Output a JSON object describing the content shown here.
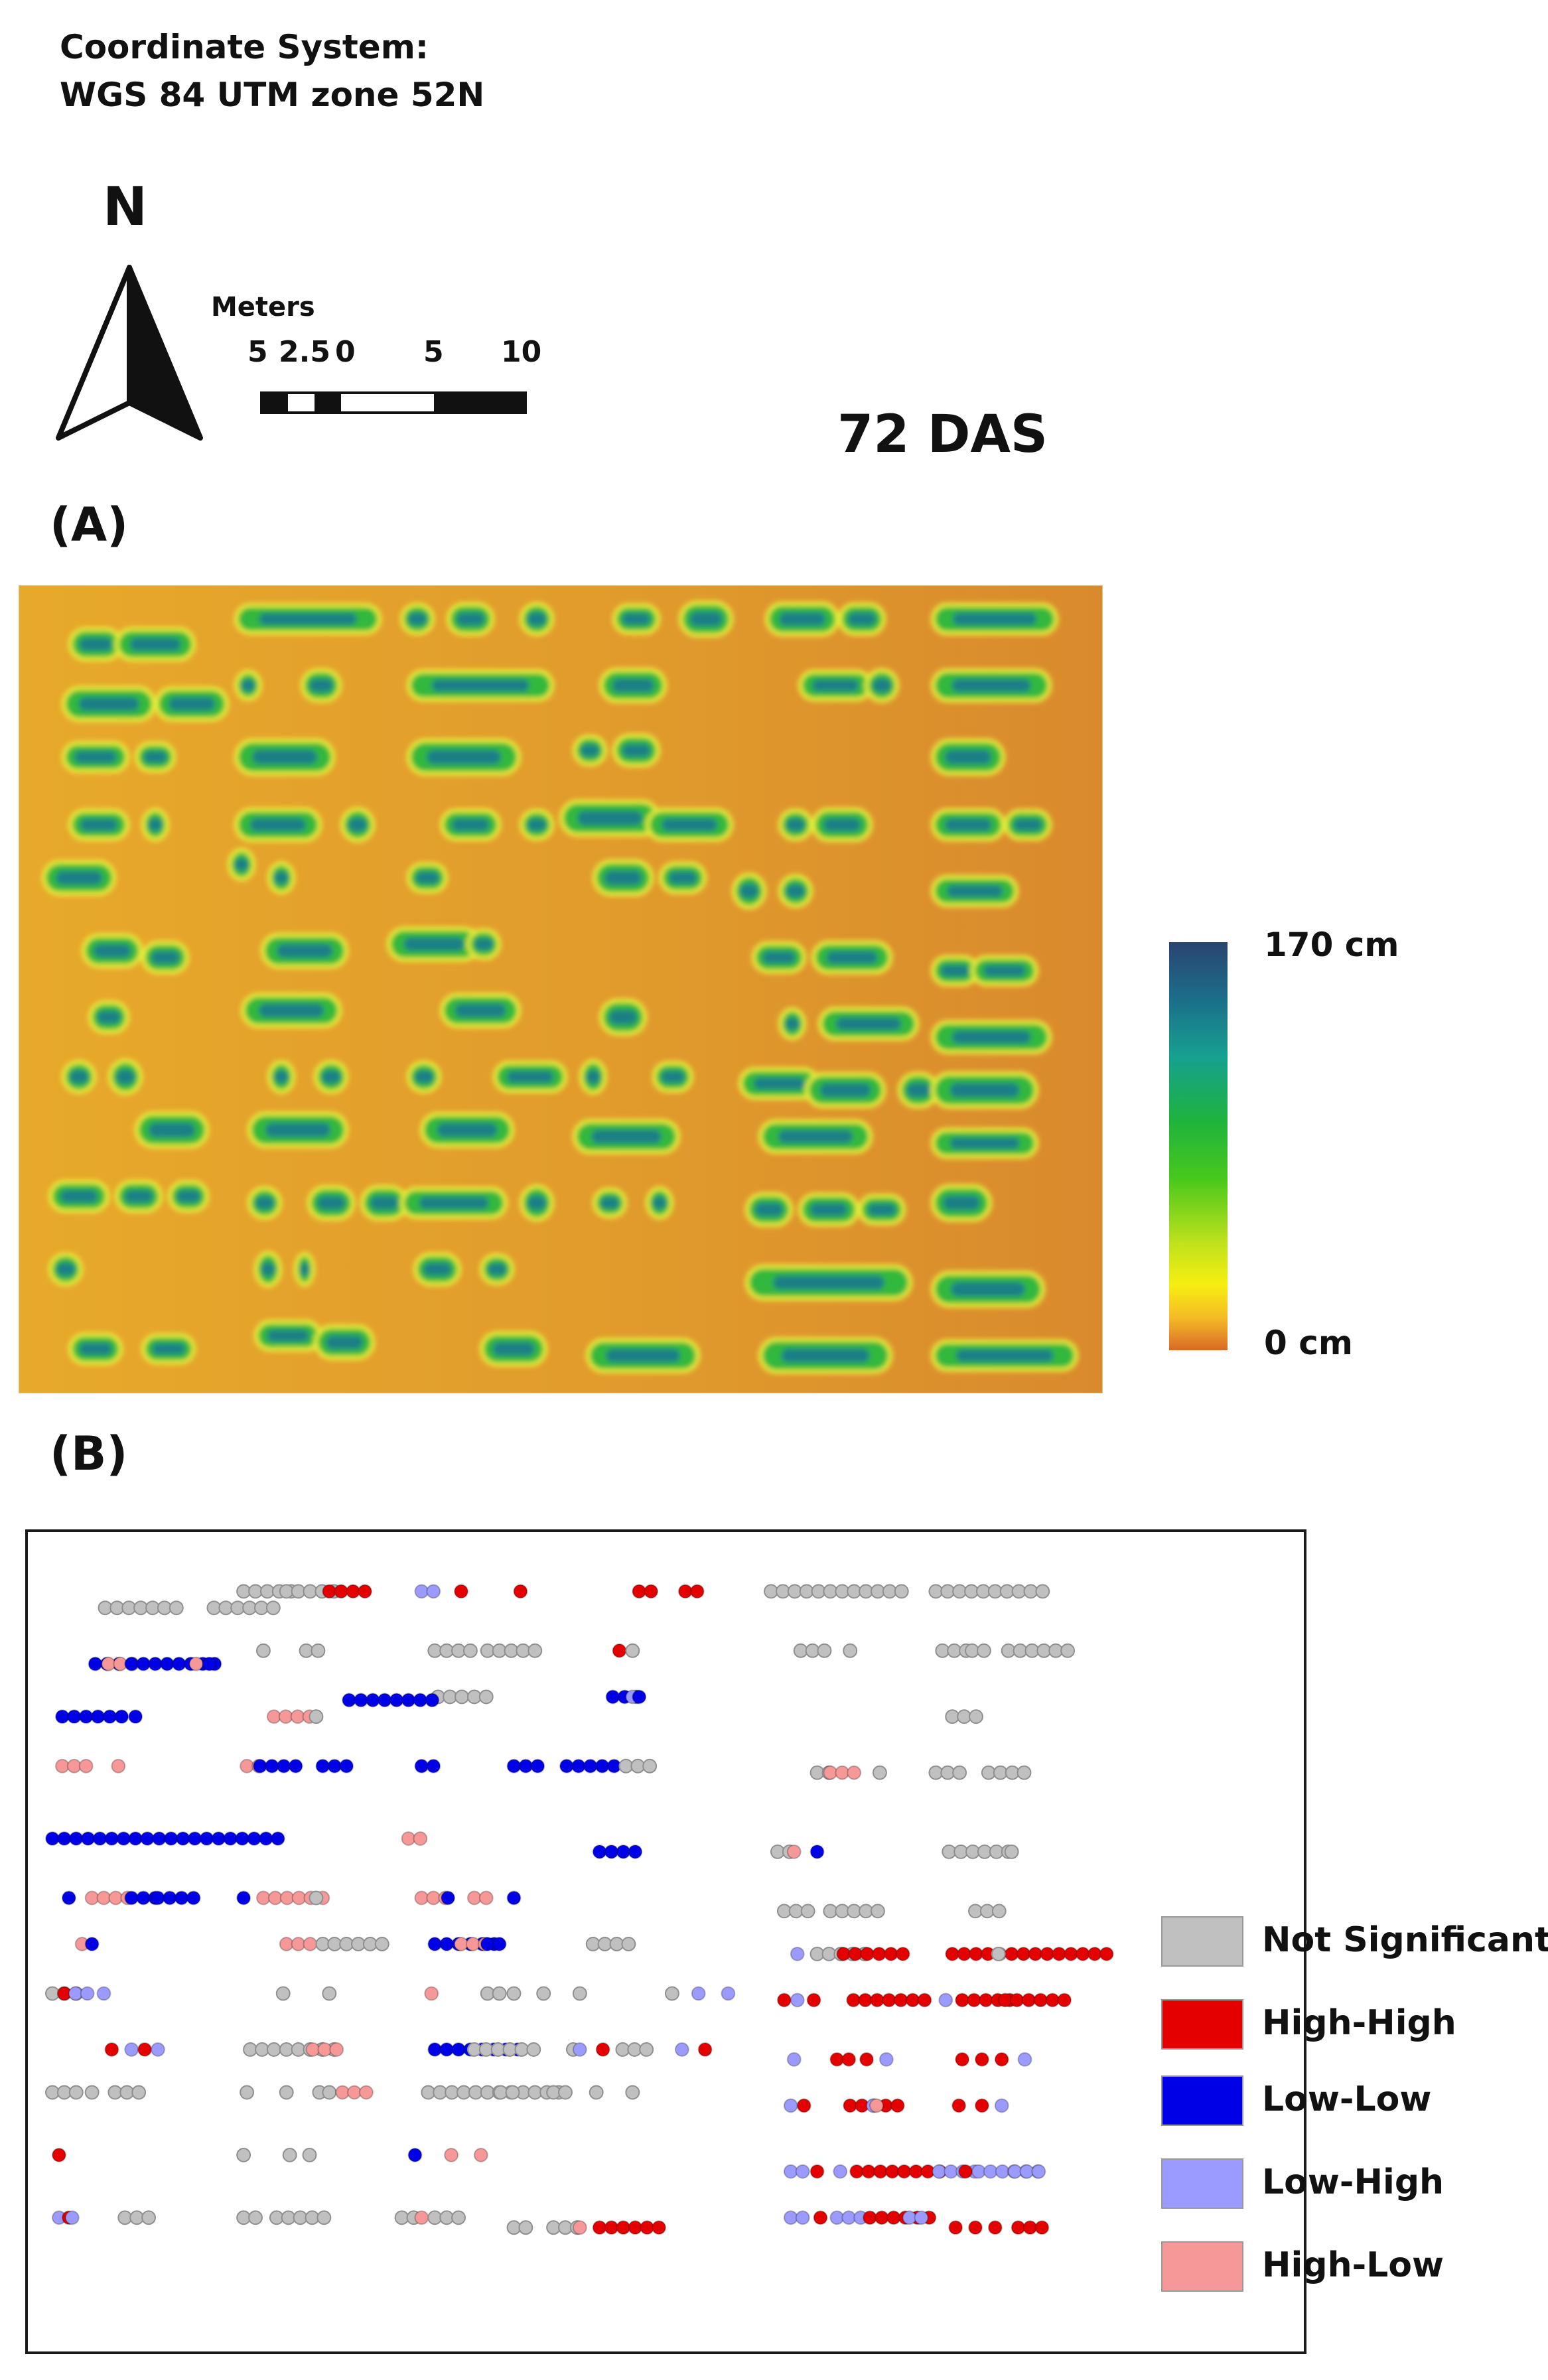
{
  "header": {
    "coord_line1": "Coordinate System:",
    "coord_line2": "WGS 84 UTM zone 52N",
    "north_label": "N",
    "scale_title": "Meters",
    "scale_ticks": [
      "5",
      "2.5",
      "0",
      "5",
      "10"
    ],
    "das_label": "72 DAS"
  },
  "panel_a": {
    "label": "(A)",
    "legend_max": "170 cm",
    "legend_min": "0 cm",
    "ramp_colors": [
      "#2a4470",
      "#16a090",
      "#1fb33d",
      "#f6ee10",
      "#d96a26"
    ]
  },
  "panel_b": {
    "label": "(B)",
    "legend": [
      {
        "label": "Not Significant",
        "color": "#c0c0c0"
      },
      {
        "label": "High-High",
        "color": "#e50000"
      },
      {
        "label": "Low-Low",
        "color": "#0000e6"
      },
      {
        "label": "Low-High",
        "color": "#9b9bff"
      },
      {
        "label": "High-Low",
        "color": "#f79898"
      }
    ]
  }
}
